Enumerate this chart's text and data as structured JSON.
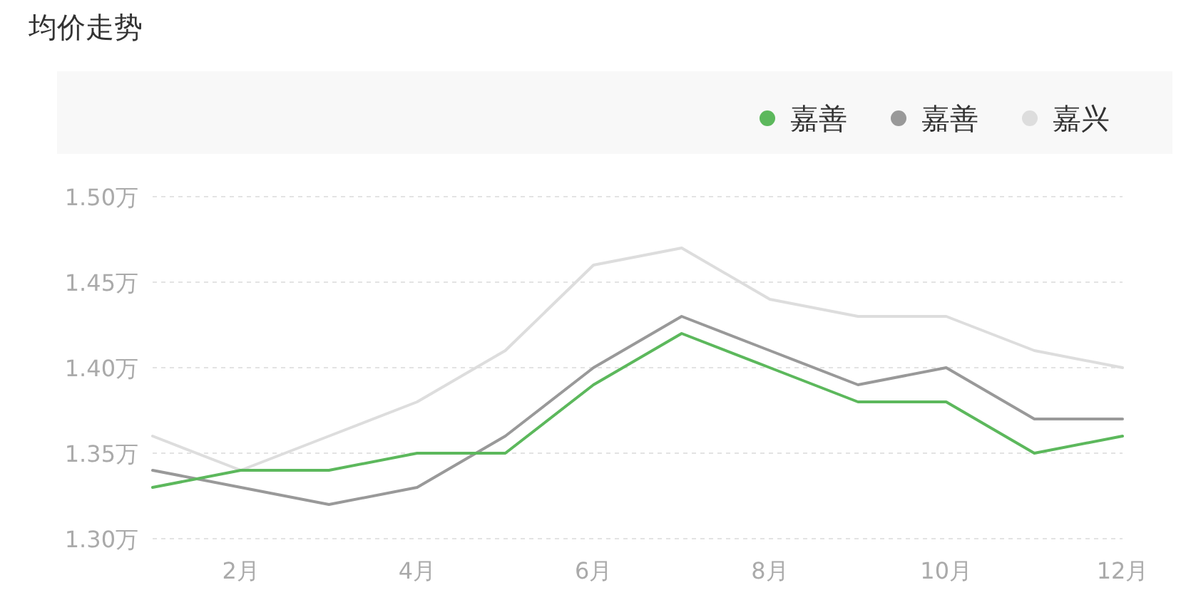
{
  "chart_data": {
    "type": "line",
    "title": "均价走势",
    "x": [
      1,
      2,
      3,
      4,
      5,
      6,
      7,
      8,
      9,
      10,
      11,
      12
    ],
    "xlim": [
      1,
      12
    ],
    "xticks": [
      {
        "value": 2,
        "label": "2月"
      },
      {
        "value": 4,
        "label": "4月"
      },
      {
        "value": 6,
        "label": "6月"
      },
      {
        "value": 8,
        "label": "8月"
      },
      {
        "value": 10,
        "label": "10月"
      },
      {
        "value": 12,
        "label": "12月"
      }
    ],
    "ylim": [
      1.3,
      1.5
    ],
    "yticks": [
      {
        "value": 1.3,
        "label": "1.30万"
      },
      {
        "value": 1.35,
        "label": "1.35万"
      },
      {
        "value": 1.4,
        "label": "1.40万"
      },
      {
        "value": 1.45,
        "label": "1.45万"
      },
      {
        "value": 1.5,
        "label": "1.50万"
      }
    ],
    "grid": "y",
    "legend": "top right",
    "line_style": "solid",
    "marker": "none",
    "series": [
      {
        "name": "嘉善",
        "color": "#5cb85c",
        "values": [
          1.33,
          1.34,
          1.34,
          1.35,
          1.35,
          1.39,
          1.42,
          1.4,
          1.38,
          1.38,
          1.35,
          1.36
        ]
      },
      {
        "name": "嘉善",
        "color": "#999999",
        "values": [
          1.34,
          1.33,
          1.32,
          1.33,
          1.36,
          1.4,
          1.43,
          1.41,
          1.39,
          1.4,
          1.37,
          1.37
        ]
      },
      {
        "name": "嘉兴",
        "color": "#dddddd",
        "values": [
          1.36,
          1.34,
          1.36,
          1.38,
          1.41,
          1.46,
          1.47,
          1.44,
          1.43,
          1.43,
          1.41,
          1.4
        ]
      }
    ]
  }
}
